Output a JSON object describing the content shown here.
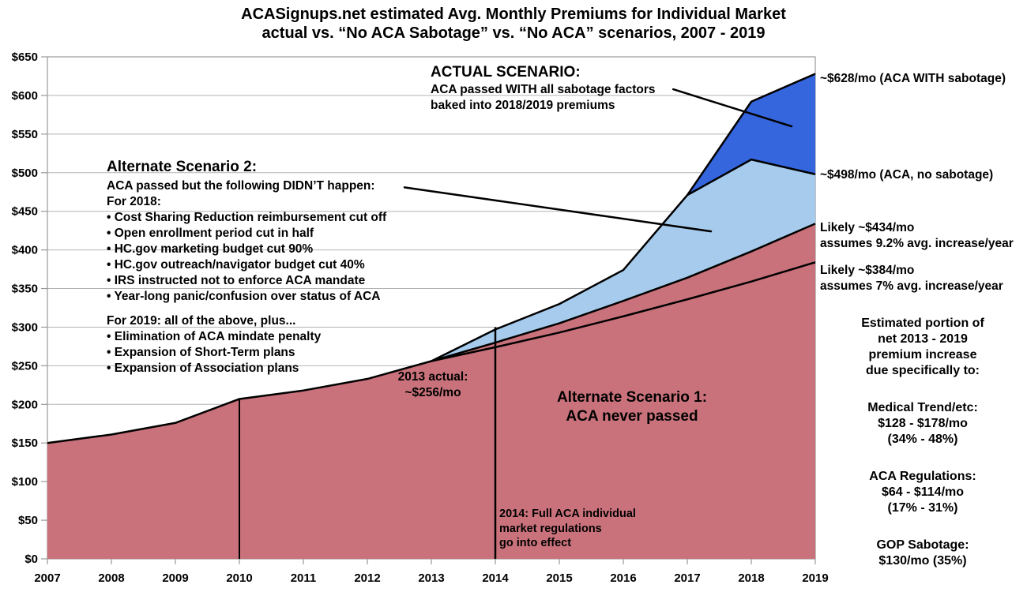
{
  "title": {
    "line1": "ACASignups.net estimated Avg. Monthly Premiums for Individual Market",
    "line2": "actual vs. “No ACA Sabotage” vs. “No ACA” scenarios, 2007 - 2019"
  },
  "chart_data": {
    "type": "area",
    "title": "ACASignups.net estimated Avg. Monthly Premiums for Individual Market, actual vs. No ACA Sabotage vs. No ACA scenarios, 2007 - 2019",
    "x": [
      2007,
      2008,
      2009,
      2010,
      2011,
      2012,
      2013,
      2014,
      2015,
      2016,
      2017,
      2018,
      2019
    ],
    "x_labels": [
      "2007",
      "2008",
      "2009",
      "2010",
      "2011",
      "2012",
      "2013",
      "2014",
      "2015",
      "2016",
      "2017",
      "2018",
      "2019"
    ],
    "ylim": [
      0,
      650
    ],
    "y_tick_values": [
      0,
      50,
      100,
      150,
      200,
      250,
      300,
      350,
      400,
      450,
      500,
      550,
      600,
      650
    ],
    "y_tick_labels": [
      "$0",
      "$50",
      "$100",
      "$150",
      "$200",
      "$250",
      "$300",
      "$350",
      "$400",
      "$450",
      "$500",
      "$550",
      "$600",
      "$650"
    ],
    "grid": true,
    "legend": "none",
    "series": [
      {
        "id": "no_aca",
        "name": "Alternate Scenario 1: ACA never passed (9.2% avg. increase/year after 2013)",
        "kind": "area",
        "base": "zero",
        "values": [
          150,
          161,
          176,
          207,
          218,
          233,
          256,
          280,
          305,
          334,
          364,
          398,
          434
        ]
      },
      {
        "id": "aca_no_sabotage",
        "name": "ACA, no sabotage",
        "kind": "band",
        "base": "no_aca",
        "values": [
          null,
          null,
          null,
          null,
          null,
          null,
          256,
          297,
          330,
          374,
          471,
          517,
          498
        ]
      },
      {
        "id": "aca_with_sabotage",
        "name": "ACTUAL: ACA WITH sabotage",
        "kind": "band",
        "base": "aca_no_sabotage",
        "values": [
          null,
          null,
          null,
          null,
          null,
          null,
          null,
          null,
          null,
          null,
          471,
          592,
          628
        ]
      },
      {
        "id": "proj_7pct",
        "name": "Likely, assumes 7% avg. increase/year",
        "kind": "line",
        "values": [
          null,
          null,
          null,
          null,
          null,
          null,
          256,
          274,
          293,
          314,
          336,
          359,
          384
        ]
      }
    ],
    "markers": [
      {
        "id": "aca-passed-2010",
        "year": 2010,
        "from": 207,
        "to": 0,
        "width": 2
      },
      {
        "id": "full-regs-2014",
        "year": 2014,
        "from": 300,
        "to": 0,
        "width": 2.5
      }
    ],
    "leader_lines": [
      {
        "id": "actual-scenario-pointer",
        "x1": 2016.78,
        "v1": 608,
        "x2": 2018.63,
        "v2": 560
      },
      {
        "id": "alt2-pointer",
        "x1": 2012.58,
        "v1": 481,
        "x2": 2017.37,
        "v2": 424
      }
    ]
  },
  "colors": {
    "no_aca_fill": "#c9727b",
    "no_sabotage_fill": "#a6cbec",
    "sabotage_fill": "#3566de",
    "line": "#000000",
    "grid": "#b3b3b3",
    "axis": "#999999",
    "text": "#000000"
  },
  "annotations": {
    "actual_scenario": {
      "heading": "ACTUAL SCENARIO:",
      "line1": "ACA passed WITH all sabotage factors",
      "line2": "baked into 2018/2019 premiums"
    },
    "alt2": {
      "heading": "Alternate Scenario 2:",
      "l0": "ACA passed but the following DIDN’T happen:",
      "l1": "For 2018:",
      "l2": "• Cost Sharing Reduction reimbursement cut off",
      "l3": "• Open enrollment period cut in half",
      "l4": "• HC.gov marketing budget cut 90%",
      "l5": "• HC.gov outreach/navigator budget cut 40%",
      "l6": "• IRS instructed not to enforce ACA mandate",
      "l7": "• Year-long panic/confusion over status of ACA",
      "l8": "For 2019: all of the above, plus...",
      "l9": "• Elimination of ACA mindate penalty",
      "l10": "• Expansion of Short-Term plans",
      "l11": "• Expansion of Association plans"
    },
    "alt1": {
      "line1": "Alternate Scenario 1:",
      "line2": "ACA never passed"
    },
    "note_2013": {
      "line1": "2013 actual:",
      "line2": "~$256/mo"
    },
    "note_2014": {
      "line1": "2014: Full ACA individual",
      "line2": "market regulations",
      "line3": "go into effect"
    },
    "point_labels": {
      "sabotage": "~$628/mo (ACA WITH sabotage)",
      "no_sabotage": "~$498/mo (ACA, no sabotage)",
      "p434_line1": "Likely ~$434/mo",
      "p434_line2": "assumes 9.2% avg. increase/year",
      "p384_line1": "Likely ~$384/mo",
      "p384_line2": "assumes 7% avg. increase/year"
    }
  },
  "right_panel": {
    "intro_l1": "Estimated portion of",
    "intro_l2": "net 2013 - 2019",
    "intro_l3": "premium increase",
    "intro_l4": "due specifically to:",
    "medical_l1": "Medical Trend/etc:",
    "medical_l2": "$128 - $178/mo",
    "medical_l3": "(34% - 48%)",
    "aca_l1": "ACA Regulations:",
    "aca_l2": "$64 - $114/mo",
    "aca_l3": "(17% - 31%)",
    "gop_l1": "GOP Sabotage:",
    "gop_l2": "$130/mo (35%)"
  }
}
